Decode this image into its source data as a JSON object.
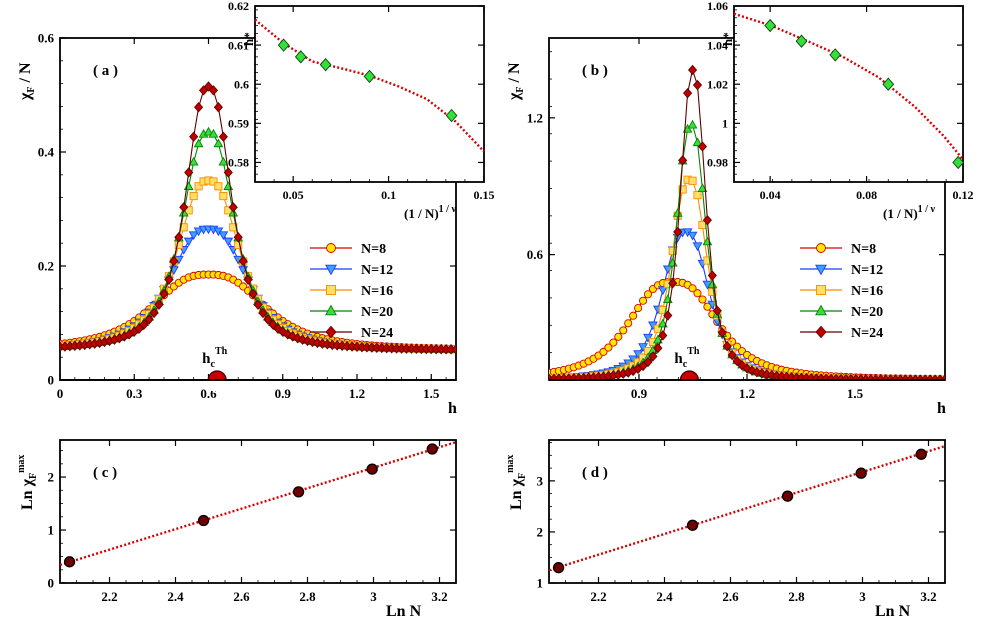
{
  "chart_data": [
    {
      "id": "a",
      "type": "line",
      "panel_label": "( a )",
      "ylabel": {
        "main": "χ",
        "sub": "F",
        "tail": " / N"
      },
      "xlabel": "h",
      "xlim": [
        0,
        1.6
      ],
      "ylim": [
        0,
        0.6
      ],
      "xticks": [
        0,
        0.3,
        0.6,
        0.9,
        1.2,
        1.5
      ],
      "xtick_labels": [
        "0",
        "0.3",
        "0.6",
        "0.9",
        "1.2",
        "1.5"
      ],
      "yticks": [
        0,
        0.2,
        0.4,
        0.6
      ],
      "ytick_labels": [
        "0",
        "0.2",
        "0.4",
        "0.6"
      ],
      "annotation": {
        "text": "h",
        "sub": "c",
        "sup": "Th",
        "x": 0.635
      },
      "series_model": {
        "base": 0.052,
        "points": 81
      },
      "series": [
        {
          "name": "N=8",
          "marker": "circle",
          "fill": "#ffe600",
          "line": "#dc0000",
          "center": 0.6,
          "peak": 0.185,
          "width": 0.255,
          "shape": 1.4
        },
        {
          "name": "N=12",
          "marker": "triangle-down",
          "fill": "#3ea0ff",
          "line": "#1c3cff",
          "center": 0.6,
          "peak": 0.265,
          "width": 0.18,
          "shape": 1.35
        },
        {
          "name": "N=16",
          "marker": "square",
          "fill": "#ffe066",
          "line": "#ff8a00",
          "center": 0.6,
          "peak": 0.35,
          "width": 0.145,
          "shape": 1.3
        },
        {
          "name": "N=20",
          "marker": "triangle-up",
          "fill": "#3ddc3d",
          "line": "#008800",
          "center": 0.6,
          "peak": 0.435,
          "width": 0.123,
          "shape": 1.28
        },
        {
          "name": "N=24",
          "marker": "diamond",
          "fill": "#c00000",
          "line": "#600000",
          "center": 0.6,
          "peak": 0.515,
          "width": 0.107,
          "shape": 1.25
        }
      ],
      "inset": {
        "ylabel": "h*",
        "xlabel": {
          "main": "(1 / N)",
          "sup": "1 / ν"
        },
        "xlim": [
          0.03,
          0.15
        ],
        "ylim": [
          0.575,
          0.62
        ],
        "xticks": [
          0.05,
          0.1,
          0.15
        ],
        "xtick_labels": [
          "0.05",
          "0.1",
          "0.15"
        ],
        "yticks": [
          0.58,
          0.59,
          0.6,
          0.61,
          0.62
        ],
        "ytick_labels": [
          "0.58",
          "0.59",
          "0.6",
          "0.61",
          "0.62"
        ],
        "points": [
          [
            0.045,
            0.61
          ],
          [
            0.054,
            0.607
          ],
          [
            0.067,
            0.605
          ],
          [
            0.09,
            0.602
          ],
          [
            0.133,
            0.592
          ]
        ],
        "fit": [
          [
            0.03,
            0.6165
          ],
          [
            0.045,
            0.6105
          ],
          [
            0.06,
            0.6058
          ],
          [
            0.075,
            0.6041
          ],
          [
            0.09,
            0.6022
          ],
          [
            0.105,
            0.5995
          ],
          [
            0.12,
            0.5962
          ],
          [
            0.135,
            0.5905
          ],
          [
            0.15,
            0.5828
          ]
        ]
      }
    },
    {
      "id": "b",
      "type": "line",
      "panel_label": "( b )",
      "ylabel": {
        "main": "χ",
        "sub": "F",
        "tail": " / N"
      },
      "xlabel": "h",
      "xlim": [
        0.65,
        1.75
      ],
      "ylim": [
        0.05,
        1.55
      ],
      "xticks": [
        0.9,
        1.2,
        1.5
      ],
      "xtick_labels": [
        "0.9",
        "1.2",
        "1.5"
      ],
      "yticks": [
        0.6,
        1.2
      ],
      "ytick_labels": [
        "0.6",
        "1.2"
      ],
      "annotation": {
        "text": "h",
        "sub": "c",
        "sup": "Th",
        "x": 1.04
      },
      "series_model": {
        "base": 0.05,
        "points": 81
      },
      "series": [
        {
          "name": "N=8",
          "marker": "circle",
          "fill": "#ffe600",
          "line": "#dc0000",
          "center": 0.995,
          "peak": 0.48,
          "width": 0.14,
          "shape": 1.4
        },
        {
          "name": "N=12",
          "marker": "triangle-down",
          "fill": "#3ea0ff",
          "line": "#1c3cff",
          "center": 1.03,
          "peak": 0.7,
          "width": 0.075,
          "shape": 1.35
        },
        {
          "name": "N=16",
          "marker": "square",
          "fill": "#ffe066",
          "line": "#ff8a00",
          "center": 1.04,
          "peak": 0.93,
          "width": 0.058,
          "shape": 1.3
        },
        {
          "name": "N=20",
          "marker": "triangle-up",
          "fill": "#3ddc3d",
          "line": "#008800",
          "center": 1.045,
          "peak": 1.17,
          "width": 0.048,
          "shape": 1.28
        },
        {
          "name": "N=24",
          "marker": "diamond",
          "fill": "#c00000",
          "line": "#600000",
          "center": 1.05,
          "peak": 1.41,
          "width": 0.041,
          "shape": 1.25
        }
      ],
      "inset": {
        "ylabel": "h*",
        "xlabel": {
          "main": "(1 / N)",
          "sup": "1 / ν"
        },
        "xlim": [
          0.025,
          0.12
        ],
        "ylim": [
          0.97,
          1.06
        ],
        "xticks": [
          0.04,
          0.08,
          0.12
        ],
        "xtick_labels": [
          "0.04",
          "0.08",
          "0.12"
        ],
        "yticks": [
          0.98,
          1,
          1.02,
          1.04,
          1.06
        ],
        "ytick_labels": [
          "0.98",
          "1",
          "1.02",
          "1.04",
          "1.06"
        ],
        "points": [
          [
            0.04,
            1.05
          ],
          [
            0.053,
            1.042
          ],
          [
            0.067,
            1.035
          ],
          [
            0.089,
            1.02
          ],
          [
            0.118,
            0.98
          ]
        ],
        "fit": [
          [
            0.025,
            1.056
          ],
          [
            0.04,
            1.0502
          ],
          [
            0.055,
            1.0423
          ],
          [
            0.07,
            1.0341
          ],
          [
            0.085,
            1.0235
          ],
          [
            0.1,
            1.0085
          ],
          [
            0.112,
            0.9935
          ],
          [
            0.12,
            0.9815
          ]
        ]
      }
    },
    {
      "id": "c",
      "type": "scatter",
      "panel_label": "( c )",
      "ylabel": {
        "main": "Ln χ",
        "sub": "F",
        "sup": "max"
      },
      "xlabel": "Ln N",
      "xlim": [
        2.05,
        3.25
      ],
      "ylim": [
        0,
        2.7
      ],
      "xticks": [
        2.2,
        2.4,
        2.6,
        2.8,
        3,
        3.2
      ],
      "xtick_labels": [
        "2.2",
        "2.4",
        "2.6",
        "2.8",
        "3",
        "3.2"
      ],
      "yticks": [
        0,
        1,
        2
      ],
      "ytick_labels": [
        "0",
        "1",
        "2"
      ],
      "points": [
        [
          2.079,
          0.4
        ],
        [
          2.485,
          1.18
        ],
        [
          2.773,
          1.72
        ],
        [
          2.996,
          2.15
        ],
        [
          3.178,
          2.53
        ]
      ],
      "fit": [
        [
          2.05,
          0.34
        ],
        [
          3.25,
          2.66
        ]
      ]
    },
    {
      "id": "d",
      "type": "scatter",
      "panel_label": "( d )",
      "ylabel": {
        "main": "Ln χ",
        "sub": "F",
        "sup": "max"
      },
      "xlabel": "Ln N",
      "xlim": [
        2.05,
        3.25
      ],
      "ylim": [
        1,
        3.8
      ],
      "xticks": [
        2.2,
        2.4,
        2.6,
        2.8,
        3,
        3.2
      ],
      "xtick_labels": [
        "2.2",
        "2.4",
        "2.6",
        "2.8",
        "3",
        "3.2"
      ],
      "yticks": [
        1,
        2,
        3
      ],
      "ytick_labels": [
        "1",
        "2",
        "3"
      ],
      "points": [
        [
          2.079,
          1.3
        ],
        [
          2.485,
          2.13
        ],
        [
          2.773,
          2.7
        ],
        [
          2.996,
          3.15
        ],
        [
          3.178,
          3.52
        ]
      ],
      "fit": [
        [
          2.05,
          1.25
        ],
        [
          3.25,
          3.68
        ]
      ]
    }
  ]
}
